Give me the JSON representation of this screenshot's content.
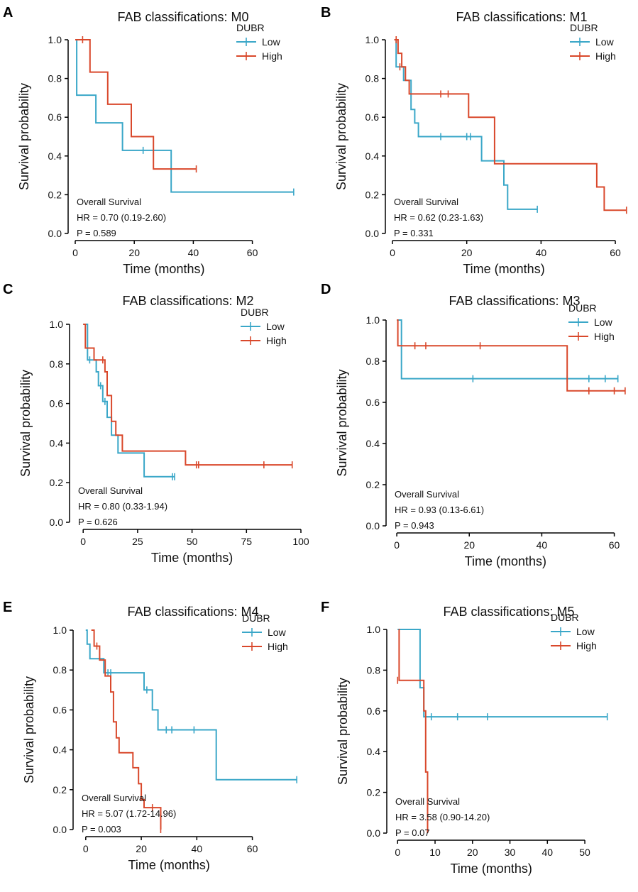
{
  "colors": {
    "low": "#3AA7C8",
    "high": "#D9482B",
    "axis": "#000000"
  },
  "chart_data": [
    {
      "label": "A",
      "type": "line",
      "title": "FAB classifications: M0",
      "xlabel": "Time (months)",
      "ylabel": "Survival probability",
      "xlim": [
        0,
        75
      ],
      "xticks": [
        0,
        20,
        40,
        60
      ],
      "ylim": [
        0,
        1
      ],
      "yticks": [
        0.0,
        0.2,
        0.4,
        0.6,
        0.8,
        1.0
      ],
      "legend": {
        "title": "DUBR",
        "entries": [
          "Low",
          "High"
        ]
      },
      "stats": {
        "line1": "Overall Survival",
        "line2": "HR = 0.70 (0.19-2.60)",
        "line3": "P = 0.589"
      },
      "series": [
        {
          "name": "Low",
          "steps": [
            [
              0,
              1.0
            ],
            [
              0.5,
              0.714
            ],
            [
              7,
              0.571
            ],
            [
              16,
              0.429
            ],
            [
              32.5,
              0.214
            ],
            [
              74,
              0.214
            ]
          ],
          "censors": [
            [
              23,
              0.429
            ],
            [
              74,
              0.214
            ]
          ]
        },
        {
          "name": "High",
          "steps": [
            [
              0,
              1.0
            ],
            [
              5,
              0.833
            ],
            [
              11,
              0.667
            ],
            [
              19,
              0.5
            ],
            [
              26.5,
              0.333
            ],
            [
              41,
              0.333
            ]
          ],
          "censors": [
            [
              2.5,
              1.0
            ],
            [
              41,
              0.333
            ]
          ]
        }
      ]
    },
    {
      "label": "B",
      "type": "line",
      "title": "FAB classifications: M1",
      "xlabel": "Time (months)",
      "ylabel": "Survival probability",
      "xlim": [
        0,
        64
      ],
      "xticks": [
        0,
        20,
        40,
        60
      ],
      "ylim": [
        0,
        1
      ],
      "yticks": [
        0.0,
        0.2,
        0.4,
        0.6,
        0.8,
        1.0
      ],
      "legend": {
        "title": "DUBR",
        "entries": [
          "Low",
          "High"
        ]
      },
      "stats": {
        "line1": "Overall Survival",
        "line2": "HR = 0.62 (0.23-1.63)",
        "line3": "P = 0.331"
      },
      "series": [
        {
          "name": "Low",
          "steps": [
            [
              0.5,
              1.0
            ],
            [
              1,
              0.86
            ],
            [
              3,
              0.79
            ],
            [
              5,
              0.64
            ],
            [
              6,
              0.57
            ],
            [
              7,
              0.5
            ],
            [
              24,
              0.375
            ],
            [
              30,
              0.25
            ],
            [
              31,
              0.125
            ],
            [
              39,
              0.125
            ]
          ],
          "censors": [
            [
              13,
              0.5
            ],
            [
              20,
              0.5
            ],
            [
              21,
              0.5
            ],
            [
              39,
              0.125
            ]
          ]
        },
        {
          "name": "High",
          "steps": [
            [
              0.5,
              1.0
            ],
            [
              1.5,
              0.93
            ],
            [
              2.5,
              0.86
            ],
            [
              3.5,
              0.79
            ],
            [
              4.5,
              0.72
            ],
            [
              20.5,
              0.6
            ],
            [
              27.5,
              0.36
            ],
            [
              55,
              0.24
            ],
            [
              57,
              0.12
            ],
            [
              63,
              0.12
            ]
          ],
          "censors": [
            [
              1,
              1.0
            ],
            [
              2,
              0.86
            ],
            [
              13,
              0.72
            ],
            [
              15,
              0.72
            ],
            [
              63,
              0.12
            ]
          ]
        }
      ]
    },
    {
      "label": "C",
      "type": "line",
      "title": "FAB classifications: M2",
      "xlabel": "Time (months)",
      "ylabel": "Survival probability",
      "xlim": [
        -3,
        100
      ],
      "xticks": [
        0,
        25,
        50,
        75,
        100
      ],
      "ylim": [
        0,
        1
      ],
      "yticks": [
        0.0,
        0.2,
        0.4,
        0.6,
        0.8,
        1.0
      ],
      "legend": {
        "title": "DUBR",
        "entries": [
          "Low",
          "High"
        ]
      },
      "stats": {
        "line1": "Overall Survival",
        "line2": "HR = 0.80 (0.33-1.94)",
        "line3": "P = 0.626"
      },
      "series": [
        {
          "name": "Low",
          "steps": [
            [
              0,
              1.0
            ],
            [
              2,
              0.82
            ],
            [
              6,
              0.76
            ],
            [
              7,
              0.69
            ],
            [
              9,
              0.61
            ],
            [
              11,
              0.53
            ],
            [
              13,
              0.44
            ],
            [
              16,
              0.35
            ],
            [
              28,
              0.23
            ],
            [
              42,
              0.23
            ]
          ],
          "censors": [
            [
              3,
              0.82
            ],
            [
              8,
              0.69
            ],
            [
              10,
              0.61
            ],
            [
              41,
              0.23
            ],
            [
              42,
              0.23
            ]
          ]
        },
        {
          "name": "High",
          "steps": [
            [
              0,
              1.0
            ],
            [
              1,
              0.88
            ],
            [
              5,
              0.82
            ],
            [
              10,
              0.76
            ],
            [
              11,
              0.64
            ],
            [
              13,
              0.51
            ],
            [
              15,
              0.44
            ],
            [
              18,
              0.36
            ],
            [
              47,
              0.29
            ],
            [
              96,
              0.29
            ]
          ],
          "censors": [
            [
              9,
              0.82
            ],
            [
              52,
              0.29
            ],
            [
              53,
              0.29
            ],
            [
              83,
              0.29
            ],
            [
              96,
              0.29
            ]
          ]
        }
      ]
    },
    {
      "label": "D",
      "type": "line",
      "title": "FAB classifications: M3",
      "xlabel": "Time (months)",
      "ylabel": "Survival probability",
      "xlim": [
        -1,
        64
      ],
      "xticks": [
        0,
        20,
        40,
        60
      ],
      "ylim": [
        0,
        1
      ],
      "yticks": [
        0.0,
        0.2,
        0.4,
        0.6,
        0.8,
        1.0
      ],
      "legend": {
        "title": "DUBR",
        "entries": [
          "Low",
          "High"
        ]
      },
      "stats": {
        "line1": "Overall Survival",
        "line2": "HR = 0.93 (0.13-6.61)",
        "line3": "P = 0.943"
      },
      "series": [
        {
          "name": "Low",
          "steps": [
            [
              0.3,
              1.0
            ],
            [
              1.3,
              0.715
            ],
            [
              61,
              0.715
            ]
          ],
          "censors": [
            [
              21,
              0.715
            ],
            [
              47,
              0.715
            ],
            [
              53,
              0.715
            ],
            [
              57.5,
              0.715
            ],
            [
              61,
              0.715
            ]
          ]
        },
        {
          "name": "High",
          "steps": [
            [
              0,
              1.0
            ],
            [
              0.3,
              0.875
            ],
            [
              47,
              0.656
            ],
            [
              63,
              0.656
            ]
          ],
          "censors": [
            [
              5,
              0.875
            ],
            [
              8,
              0.875
            ],
            [
              23,
              0.875
            ],
            [
              53,
              0.656
            ],
            [
              60,
              0.656
            ],
            [
              63,
              0.656
            ]
          ]
        }
      ]
    },
    {
      "label": "E",
      "type": "line",
      "title": "FAB classifications: M4",
      "xlabel": "Time (months)",
      "ylabel": "Survival probability",
      "xlim": [
        -2,
        78
      ],
      "xticks": [
        0,
        20,
        40,
        60
      ],
      "ylim": [
        0,
        1
      ],
      "yticks": [
        0.0,
        0.2,
        0.4,
        0.6,
        0.8,
        1.0
      ],
      "legend": {
        "title": "DUBR",
        "entries": [
          "Low",
          "High"
        ]
      },
      "stats": {
        "line1": "Overall Survival",
        "line2": "HR = 5.07 (1.72-14.96)",
        "line3": "P = 0.003"
      },
      "series": [
        {
          "name": "Low",
          "steps": [
            [
              0,
              1.0
            ],
            [
              0.5,
              0.93
            ],
            [
              1.5,
              0.857
            ],
            [
              6.5,
              0.786
            ],
            [
              21,
              0.7
            ],
            [
              24,
              0.6
            ],
            [
              26,
              0.5
            ],
            [
              47,
              0.25
            ],
            [
              76,
              0.25
            ]
          ],
          "censors": [
            [
              8,
              0.786
            ],
            [
              9,
              0.786
            ],
            [
              22,
              0.7
            ],
            [
              29,
              0.5
            ],
            [
              31,
              0.5
            ],
            [
              39,
              0.5
            ],
            [
              76,
              0.25
            ]
          ]
        },
        {
          "name": "High",
          "steps": [
            [
              2,
              1.0
            ],
            [
              3,
              0.92
            ],
            [
              5,
              0.85
            ],
            [
              7,
              0.77
            ],
            [
              9,
              0.69
            ],
            [
              10,
              0.54
            ],
            [
              11,
              0.46
            ],
            [
              12,
              0.385
            ],
            [
              17,
              0.31
            ],
            [
              19,
              0.23
            ],
            [
              20,
              0.15
            ],
            [
              21,
              0.11
            ],
            [
              27,
              0.0
            ]
          ],
          "censors": [
            [
              4,
              0.92
            ],
            [
              24,
              0.11
            ],
            [
              27,
              0.0
            ]
          ]
        }
      ]
    },
    {
      "label": "F",
      "type": "line",
      "title": "FAB classifications: M5",
      "xlabel": "Time (months)",
      "ylabel": "Survival probability",
      "xlim": [
        -1,
        57
      ],
      "xticks": [
        0,
        10,
        20,
        30,
        40,
        50
      ],
      "ylim": [
        0,
        1
      ],
      "yticks": [
        0.0,
        0.2,
        0.4,
        0.6,
        0.8,
        1.0
      ],
      "legend": {
        "title": "DUBR",
        "entries": [
          "Low",
          "High"
        ]
      },
      "stats": {
        "line1": "Overall Survival",
        "line2": "HR = 3.58 (0.90-14.20)",
        "line3": "P = 0.07"
      },
      "series": [
        {
          "name": "Low",
          "steps": [
            [
              0,
              1.0
            ],
            [
              6,
              0.714
            ],
            [
              7,
              0.571
            ],
            [
              56,
              0.571
            ]
          ],
          "censors": [
            [
              9,
              0.571
            ],
            [
              16,
              0.571
            ],
            [
              24,
              0.571
            ],
            [
              56,
              0.571
            ]
          ]
        },
        {
          "name": "High",
          "steps": [
            [
              0.3,
              1.0
            ],
            [
              0.4,
              0.75
            ],
            [
              7,
              0.6
            ],
            [
              7.5,
              0.3
            ],
            [
              8,
              0.0
            ]
          ],
          "censors": [
            [
              0,
              0.75
            ]
          ]
        }
      ]
    }
  ]
}
